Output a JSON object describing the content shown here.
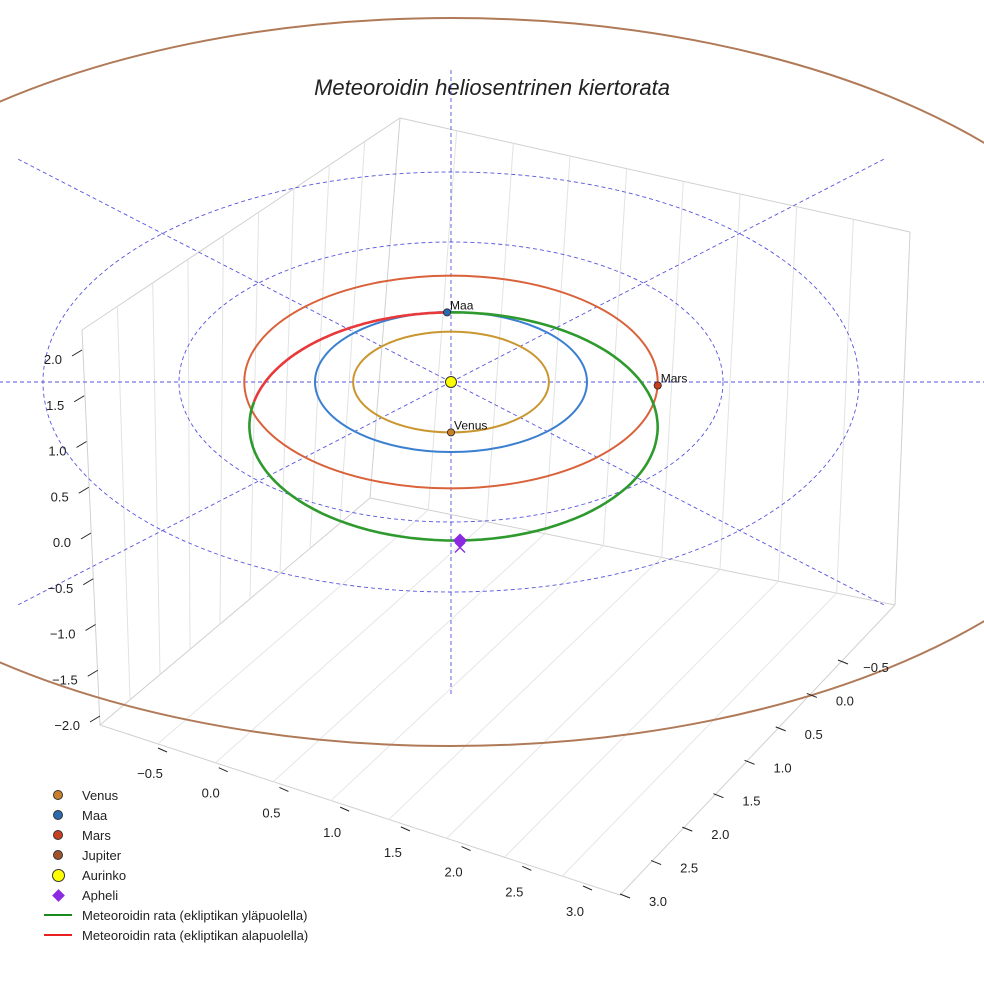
{
  "chart_data": {
    "type": "3d-line",
    "title": "Meteoroidin heliosentrinen kiertorata",
    "x_ticks": [
      "−0.5",
      "0.0",
      "0.5",
      "1.0",
      "1.5",
      "2.0",
      "2.5",
      "3.0"
    ],
    "y_ticks": [
      "−0.5",
      "0.0",
      "0.5",
      "1.0",
      "1.5",
      "2.0",
      "2.5",
      "3.0"
    ],
    "z_ticks": [
      "2.0",
      "1.5",
      "1.0",
      "0.5",
      "0.0",
      "−0.5",
      "−1.0",
      "−1.5",
      "−2.0"
    ],
    "planet_orbits": [
      {
        "name": "Venus",
        "radius_au": 0.72,
        "color": "#c9962f"
      },
      {
        "name": "Maa",
        "radius_au": 1.0,
        "color": "#3b7fd0"
      },
      {
        "name": "Mars",
        "radius_au": 1.52,
        "color": "#d9623a"
      },
      {
        "name": "Jupiter",
        "radius_au": 5.2,
        "color": "#b07a58"
      }
    ],
    "planet_markers": [
      {
        "name": "Venus",
        "label": "Venus",
        "color": "#c8802a"
      },
      {
        "name": "Maa",
        "label": "Maa",
        "color": "#2a6bb0"
      },
      {
        "name": "Mars",
        "label": "Mars",
        "color": "#c8401e"
      }
    ],
    "meteoroid_orbit": {
      "semi_major_axis_au": 1.63,
      "eccentricity": 0.39,
      "perihelion_au": 1.0,
      "aphelion_au": 2.27,
      "above_ecliptic_color": "#2e9a2e",
      "below_ecliptic_color": "#e8383a"
    },
    "ecliptic_grid": {
      "ring_radii_au": [
        1,
        2,
        3
      ],
      "color": "#5555dd"
    },
    "legend": [
      {
        "label": "Venus",
        "symbol": "dot",
        "color": "#c8802a"
      },
      {
        "label": "Maa",
        "symbol": "dot",
        "color": "#2a6bb0"
      },
      {
        "label": "Mars",
        "symbol": "dot",
        "color": "#c8401e"
      },
      {
        "label": "Jupiter",
        "symbol": "dot",
        "color": "#a0522d"
      },
      {
        "label": "Aurinko",
        "symbol": "dot-big",
        "color": "#ffff00"
      },
      {
        "label": "Apheli",
        "symbol": "diamond",
        "color": "#8a2be2"
      },
      {
        "label": "Meteoroidin rata (ekliptikan yläpuolella)",
        "symbol": "line",
        "color": "#1a8a1a"
      },
      {
        "label": "Meteoroidin rata (ekliptikan alapuolella)",
        "symbol": "line",
        "color": "#e82020"
      }
    ]
  }
}
